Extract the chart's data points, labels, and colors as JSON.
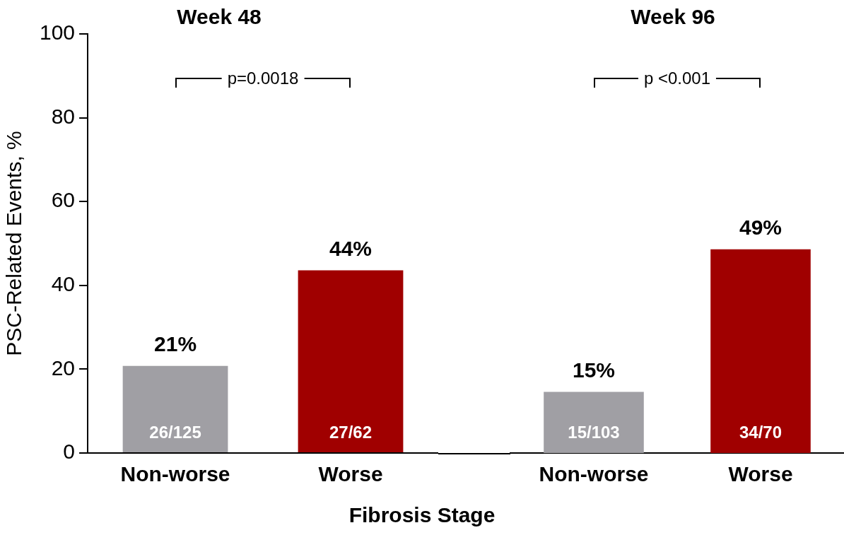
{
  "chart_data": [
    {
      "type": "bar",
      "title": "Week 48",
      "xlabel": "Fibrosis Stage",
      "ylabel": "PSC-Related Events, %",
      "categories": [
        "Non-worse",
        "Worse"
      ],
      "values": [
        20.8,
        43.6
      ],
      "colors": [
        "#a09fa4",
        "#a00000"
      ],
      "value_labels": [
        "21%",
        "44%"
      ],
      "ylim": [
        0,
        100
      ],
      "yticks": [
        0,
        20,
        40,
        60,
        80,
        100
      ],
      "grid": false,
      "legend": false,
      "annotations": [
        "p=0.0018",
        "26/125",
        "27/62"
      ]
    },
    {
      "type": "bar",
      "title": "Week 96",
      "categories": [
        "Non-worse",
        "Worse"
      ],
      "values": [
        14.6,
        48.6
      ],
      "colors": [
        "#a09fa4",
        "#a00000"
      ],
      "value_labels": [
        "15%",
        "49%"
      ],
      "ylim": [
        0,
        100
      ],
      "yticks": [
        0,
        20,
        40,
        60,
        80,
        100
      ],
      "grid": false,
      "legend": false,
      "tick_labels": "x",
      "annotations": [
        "p <0.001",
        "15/103",
        "34/70"
      ]
    }
  ]
}
